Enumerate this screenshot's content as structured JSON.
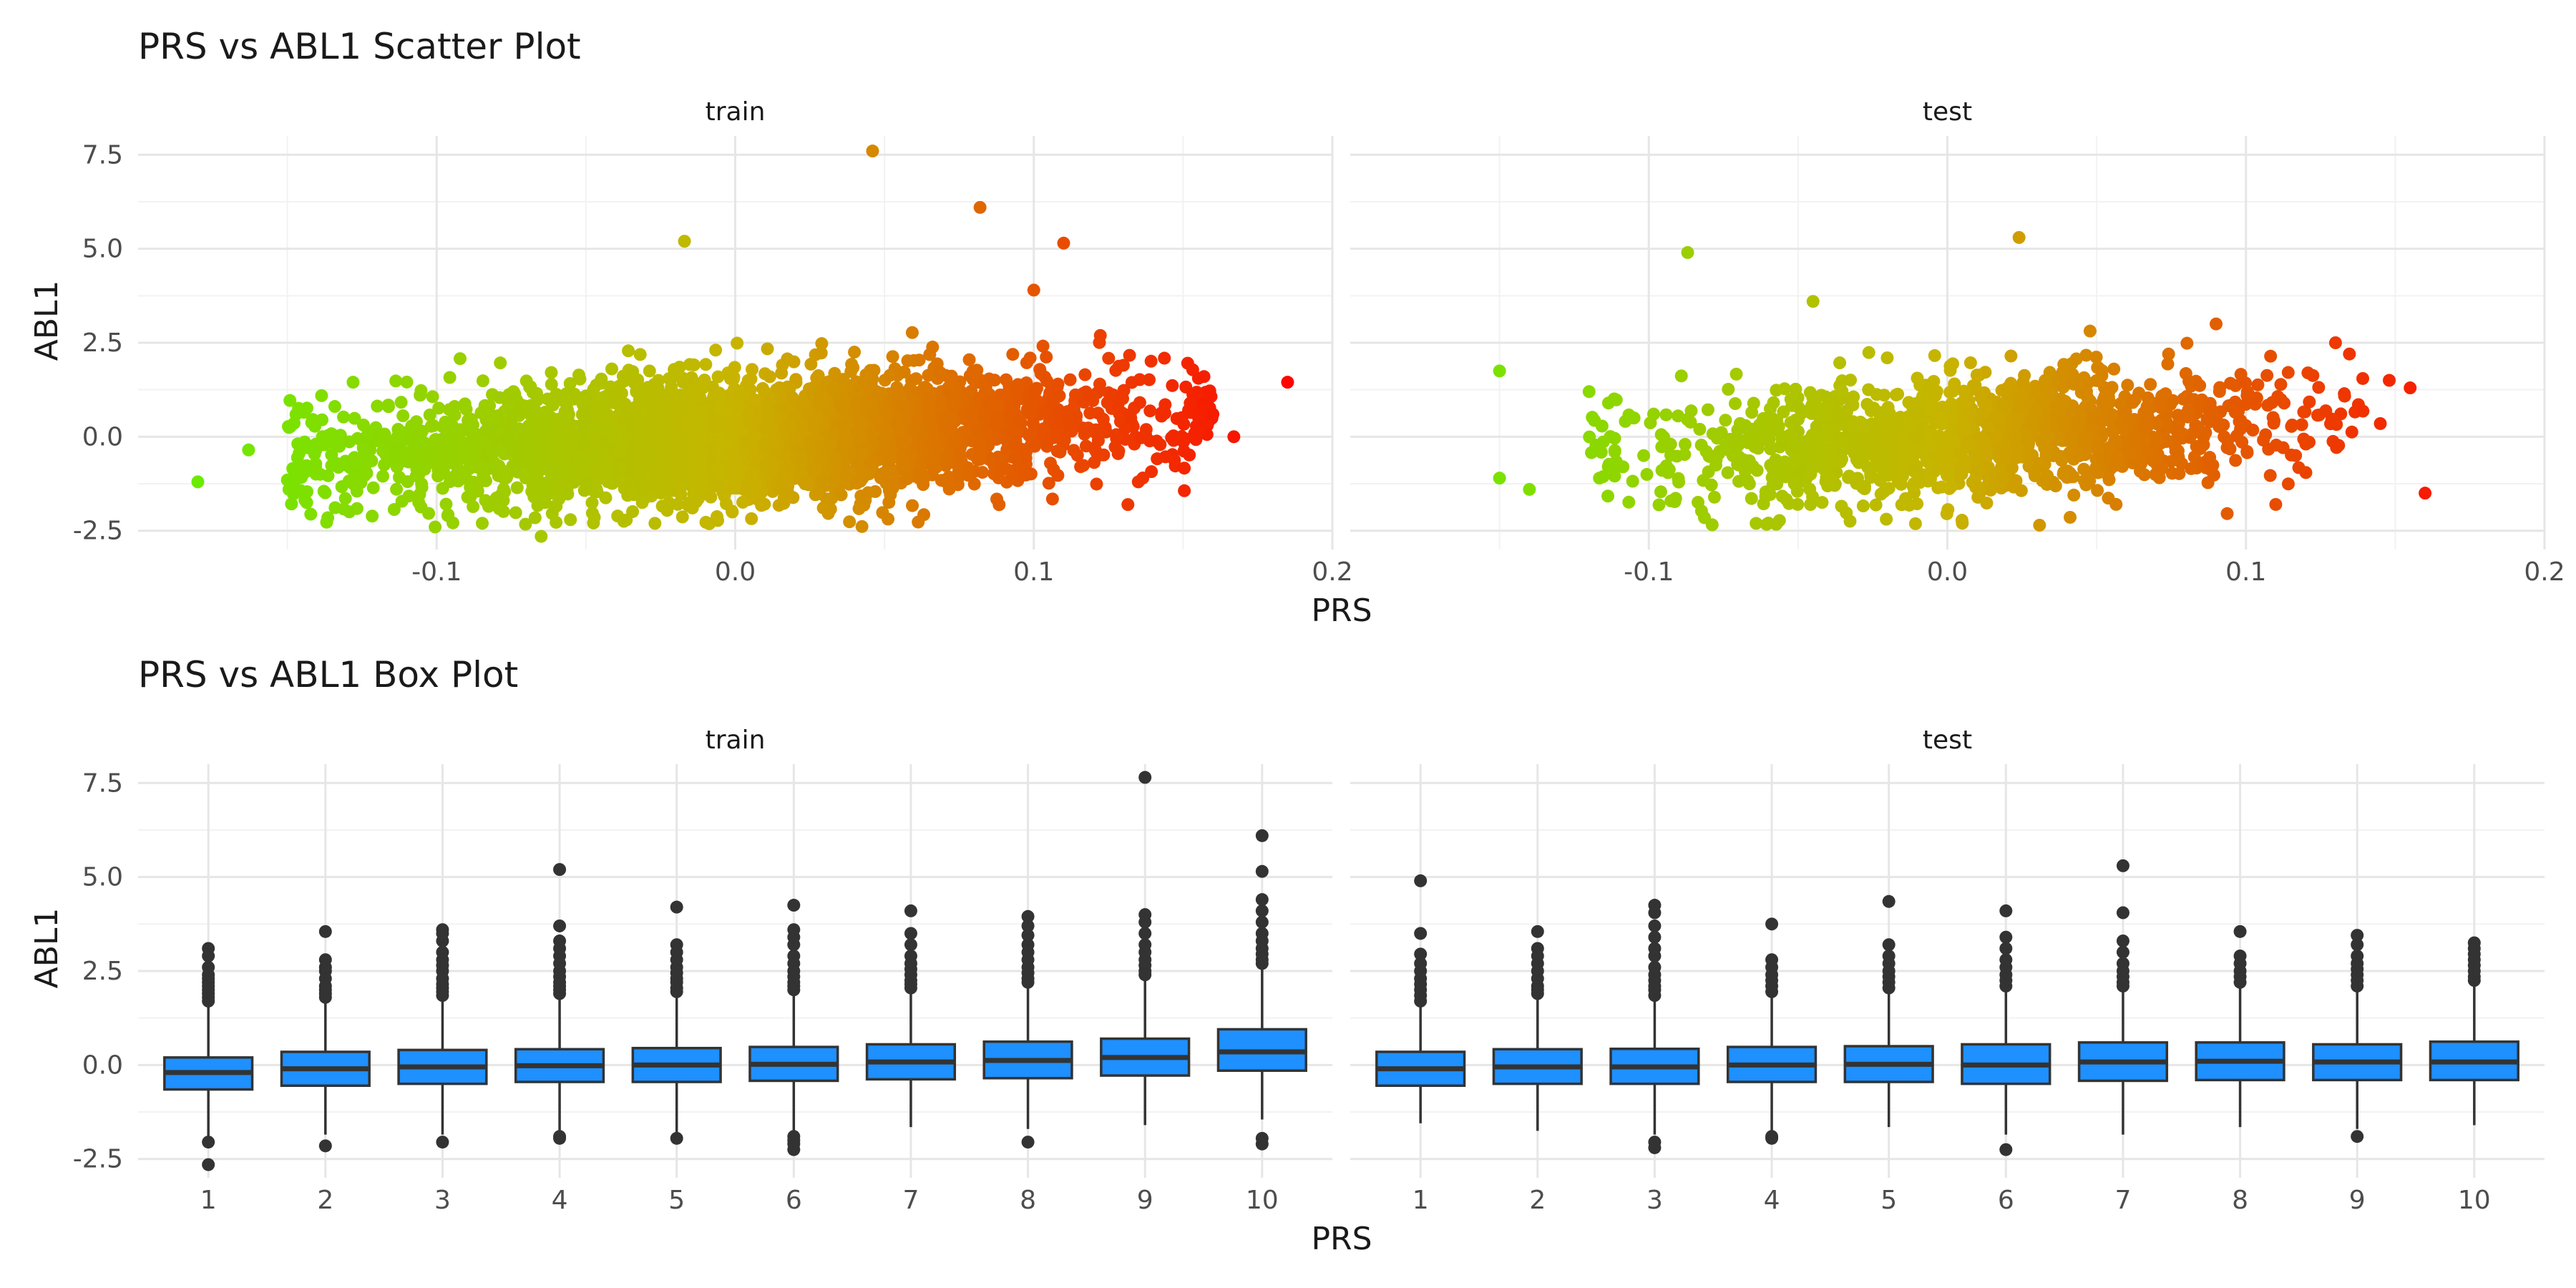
{
  "chart_data": [
    {
      "type": "scatter",
      "title": "PRS vs ABL1 Scatter Plot",
      "xlabel": "PRS",
      "ylabel": "ABL1",
      "xlim": [
        -0.2,
        0.2
      ],
      "ylim": [
        -3.0,
        8.0
      ],
      "x_ticks": [
        -0.1,
        0.0,
        0.1,
        0.2
      ],
      "x_tick_labels": [
        "-0.1",
        "0.0",
        "0.1",
        "0.2"
      ],
      "y_ticks": [
        -2.5,
        0.0,
        2.5,
        5.0,
        7.5
      ],
      "y_tick_labels": [
        "-2.5",
        "0.0",
        "2.5",
        "5.0",
        "7.5"
      ],
      "grid": true,
      "legend": "none",
      "color_scale": {
        "low": "#66ee00",
        "mid": "#c8b400",
        "high": "#ff0000",
        "mapped_to": "PRS"
      },
      "panels": [
        {
          "label": "train",
          "n_points": 3500,
          "core": {
            "x_range": [
              -0.13,
              0.14
            ],
            "center_y": 0.0,
            "spread_y": 0.8,
            "slope": 3.5
          },
          "notable_points": [
            {
              "x": -0.18,
              "y": -1.2
            },
            {
              "x": 0.185,
              "y": 1.45
            },
            {
              "x": 0.046,
              "y": 7.6
            },
            {
              "x": 0.082,
              "y": 6.1
            },
            {
              "x": 0.11,
              "y": 5.15
            },
            {
              "x": -0.017,
              "y": 5.2
            },
            {
              "x": -0.065,
              "y": -2.65
            },
            {
              "x": 0.167,
              "y": 0.0
            },
            {
              "x": 0.16,
              "y": 0.6
            },
            {
              "x": 0.157,
              "y": 1.6
            },
            {
              "x": -0.15,
              "y": -1.15
            },
            {
              "x": -0.128,
              "y": 1.45
            },
            {
              "x": 0.1,
              "y": 3.9
            },
            {
              "x": 0.13,
              "y": 1.9
            },
            {
              "x": 0.135,
              "y": -1.2
            },
            {
              "x": -0.163,
              "y": -0.35
            }
          ]
        },
        {
          "label": "test",
          "n_points": 1500,
          "core": {
            "x_range": [
              -0.1,
              0.12
            ],
            "center_y": 0.0,
            "spread_y": 0.8,
            "slope": 3.5
          },
          "notable_points": [
            {
              "x": -0.15,
              "y": 1.75
            },
            {
              "x": 0.16,
              "y": -1.5
            },
            {
              "x": -0.087,
              "y": 4.9
            },
            {
              "x": 0.024,
              "y": 5.3
            },
            {
              "x": 0.148,
              "y": 1.5
            },
            {
              "x": 0.155,
              "y": 1.3
            },
            {
              "x": 0.145,
              "y": 0.35
            },
            {
              "x": -0.15,
              "y": -1.1
            },
            {
              "x": -0.14,
              "y": -1.4
            },
            {
              "x": 0.005,
              "y": -2.3
            },
            {
              "x": -0.12,
              "y": 1.2
            },
            {
              "x": 0.13,
              "y": 2.5
            },
            {
              "x": -0.045,
              "y": 3.6
            },
            {
              "x": 0.09,
              "y": 3.0
            }
          ]
        }
      ]
    },
    {
      "type": "box",
      "title": "PRS vs ABL1 Box Plot",
      "xlabel": "PRS",
      "ylabel": "ABL1",
      "ylim": [
        -3.0,
        8.0
      ],
      "categories": [
        "1",
        "2",
        "3",
        "4",
        "5",
        "6",
        "7",
        "8",
        "9",
        "10"
      ],
      "y_ticks": [
        -2.5,
        0.0,
        2.5,
        5.0,
        7.5
      ],
      "y_tick_labels": [
        "-2.5",
        "0.0",
        "2.5",
        "5.0",
        "7.5"
      ],
      "grid": true,
      "box_fill": "#1e90ff",
      "box_stroke": "#333333",
      "panels": [
        {
          "label": "train",
          "boxes": [
            {
              "q1": -0.65,
              "median": -0.2,
              "q3": 0.2,
              "lower": -1.95,
              "upper": 1.55,
              "outliers_high": [
                1.7,
                1.8,
                1.9,
                2.0,
                2.1,
                2.2,
                2.3,
                2.4,
                2.6,
                2.9,
                3.1
              ],
              "outliers_low": [
                -2.05,
                -2.65
              ]
            },
            {
              "q1": -0.55,
              "median": -0.1,
              "q3": 0.35,
              "lower": -1.85,
              "upper": 1.7,
              "outliers_high": [
                1.8,
                1.9,
                2.0,
                2.1,
                2.3,
                2.5,
                2.6,
                2.8,
                3.55
              ],
              "outliers_low": [
                -2.15
              ]
            },
            {
              "q1": -0.5,
              "median": -0.05,
              "q3": 0.4,
              "lower": -1.85,
              "upper": 1.75,
              "outliers_high": [
                1.85,
                1.95,
                2.05,
                2.15,
                2.3,
                2.5,
                2.65,
                2.8,
                3.0,
                3.3,
                3.5,
                3.6
              ],
              "outliers_low": [
                -2.05
              ]
            },
            {
              "q1": -0.45,
              "median": -0.02,
              "q3": 0.42,
              "lower": -1.85,
              "upper": 1.8,
              "outliers_high": [
                1.9,
                2.0,
                2.1,
                2.2,
                2.35,
                2.5,
                2.7,
                2.9,
                3.1,
                3.3,
                3.7,
                5.2
              ],
              "outliers_low": [
                -1.95,
                -1.9
              ]
            },
            {
              "q1": -0.45,
              "median": 0.0,
              "q3": 0.45,
              "lower": -1.8,
              "upper": 1.85,
              "outliers_high": [
                1.95,
                2.05,
                2.2,
                2.3,
                2.45,
                2.6,
                2.8,
                3.0,
                3.2,
                4.2
              ],
              "outliers_low": [
                -1.95
              ]
            },
            {
              "q1": -0.42,
              "median": 0.02,
              "q3": 0.48,
              "lower": -1.8,
              "upper": 1.9,
              "outliers_high": [
                2.0,
                2.1,
                2.2,
                2.35,
                2.5,
                2.7,
                2.9,
                3.2,
                3.4,
                3.6,
                4.25
              ],
              "outliers_low": [
                -1.9,
                -2.0,
                -2.1,
                -2.25
              ]
            },
            {
              "q1": -0.38,
              "median": 0.08,
              "q3": 0.55,
              "lower": -1.65,
              "upper": 1.95,
              "outliers_high": [
                2.05,
                2.15,
                2.25,
                2.4,
                2.55,
                2.7,
                2.9,
                3.2,
                3.5,
                4.1
              ],
              "outliers_low": []
            },
            {
              "q1": -0.35,
              "median": 0.12,
              "q3": 0.62,
              "lower": -1.7,
              "upper": 2.1,
              "outliers_high": [
                2.2,
                2.3,
                2.45,
                2.6,
                2.8,
                3.0,
                3.2,
                3.45,
                3.7,
                3.95
              ],
              "outliers_low": [
                -2.05
              ]
            },
            {
              "q1": -0.28,
              "median": 0.2,
              "q3": 0.7,
              "lower": -1.6,
              "upper": 2.3,
              "outliers_high": [
                2.4,
                2.5,
                2.65,
                2.8,
                3.0,
                3.2,
                3.5,
                3.8,
                4.0,
                7.65
              ],
              "outliers_low": []
            },
            {
              "q1": -0.15,
              "median": 0.35,
              "q3": 0.95,
              "lower": -1.45,
              "upper": 2.6,
              "outliers_high": [
                2.7,
                2.8,
                2.95,
                3.1,
                3.3,
                3.5,
                3.8,
                4.1,
                4.4,
                5.15,
                6.1
              ],
              "outliers_low": [
                -1.95,
                -2.1
              ]
            }
          ]
        },
        {
          "label": "test",
          "boxes": [
            {
              "q1": -0.55,
              "median": -0.1,
              "q3": 0.35,
              "lower": -1.55,
              "upper": 1.55,
              "outliers_high": [
                1.7,
                1.85,
                2.0,
                2.15,
                2.3,
                2.5,
                2.7,
                2.95,
                3.5,
                4.9
              ],
              "outliers_low": []
            },
            {
              "q1": -0.5,
              "median": -0.05,
              "q3": 0.42,
              "lower": -1.75,
              "upper": 1.8,
              "outliers_high": [
                1.9,
                2.0,
                2.1,
                2.3,
                2.5,
                2.7,
                2.9,
                3.1,
                3.55
              ],
              "outliers_low": []
            },
            {
              "q1": -0.5,
              "median": -0.05,
              "q3": 0.43,
              "lower": -1.85,
              "upper": 1.75,
              "outliers_high": [
                1.85,
                2.0,
                2.1,
                2.25,
                2.4,
                2.6,
                2.9,
                3.1,
                3.4,
                3.7,
                4.05,
                4.25
              ],
              "outliers_low": [
                -2.05,
                -2.2
              ]
            },
            {
              "q1": -0.45,
              "median": 0.0,
              "q3": 0.48,
              "lower": -1.8,
              "upper": 1.85,
              "outliers_high": [
                1.95,
                2.1,
                2.25,
                2.4,
                2.6,
                2.8,
                3.75
              ],
              "outliers_low": [
                -1.95,
                -1.9
              ]
            },
            {
              "q1": -0.45,
              "median": 0.02,
              "q3": 0.5,
              "lower": -1.65,
              "upper": 1.95,
              "outliers_high": [
                2.05,
                2.2,
                2.35,
                2.5,
                2.7,
                2.9,
                3.2,
                4.35
              ],
              "outliers_low": []
            },
            {
              "q1": -0.5,
              "median": 0.0,
              "q3": 0.55,
              "lower": -1.85,
              "upper": 2.0,
              "outliers_high": [
                2.1,
                2.25,
                2.4,
                2.6,
                2.8,
                3.1,
                3.4,
                4.1
              ],
              "outliers_low": [
                -2.25
              ]
            },
            {
              "q1": -0.42,
              "median": 0.08,
              "q3": 0.6,
              "lower": -1.85,
              "upper": 2.0,
              "outliers_high": [
                2.1,
                2.2,
                2.35,
                2.5,
                2.7,
                3.0,
                3.3,
                4.05,
                5.3
              ],
              "outliers_low": []
            },
            {
              "q1": -0.4,
              "median": 0.1,
              "q3": 0.6,
              "lower": -1.65,
              "upper": 2.1,
              "outliers_high": [
                2.2,
                2.35,
                2.5,
                2.7,
                2.9,
                3.55
              ],
              "outliers_low": []
            },
            {
              "q1": -0.4,
              "median": 0.08,
              "q3": 0.55,
              "lower": -1.7,
              "upper": 2.0,
              "outliers_high": [
                2.1,
                2.25,
                2.4,
                2.55,
                2.7,
                2.9,
                3.2,
                3.45
              ],
              "outliers_low": [
                -1.9
              ]
            },
            {
              "q1": -0.4,
              "median": 0.08,
              "q3": 0.62,
              "lower": -1.6,
              "upper": 2.15,
              "outliers_high": [
                2.25,
                2.35,
                2.5,
                2.65,
                2.8,
                2.95,
                3.1,
                3.25
              ],
              "outliers_low": []
            }
          ]
        }
      ]
    }
  ]
}
